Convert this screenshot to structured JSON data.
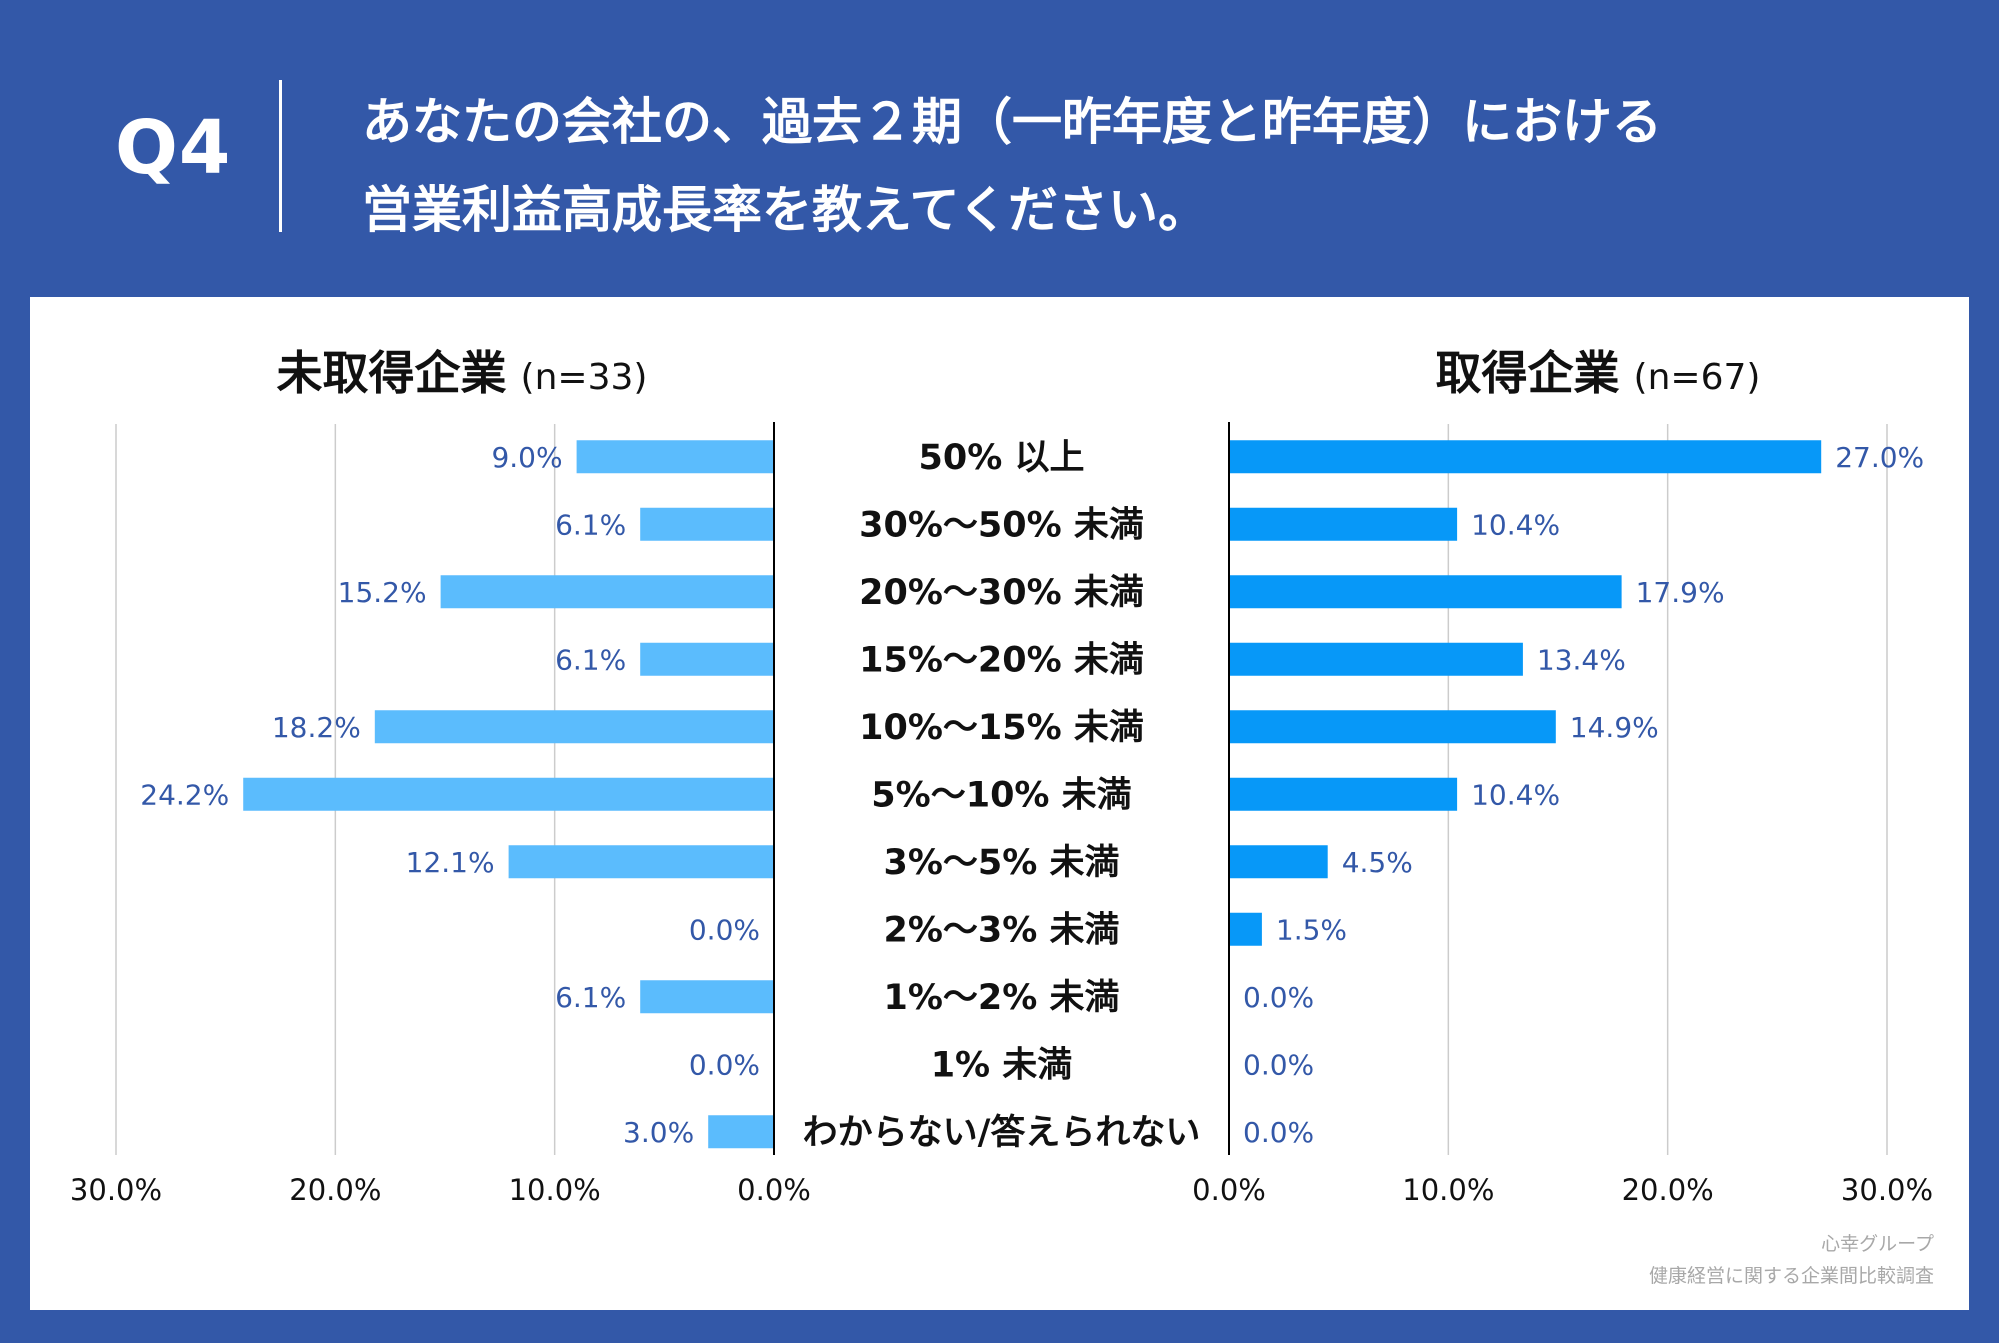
{
  "header": {
    "q_label": "Q4",
    "question_line1": "あなたの会社の、過去２期（一昨年度と昨年度）における",
    "question_line2": "営業利益高成長率を教えてください。"
  },
  "source": {
    "line1": "心幸グループ",
    "line2": "健康経営に関する企業間比較調査"
  },
  "colors": {
    "background": "#3358a8",
    "left_bar": "#5bbcfd",
    "right_bar": "#0798f8",
    "value_label": "#3358a8"
  },
  "chart_data": {
    "type": "bar",
    "orientation": "horizontal-butterfly",
    "categories": [
      "50% 以上",
      "30%～50% 未満",
      "20%～30% 未満",
      "15%～20% 未満",
      "10%～15% 未満",
      "5%～10% 未満",
      "3%～5% 未満",
      "2%～3% 未満",
      "1%～2% 未満",
      "1% 未満",
      "わからない/答えられない"
    ],
    "series": [
      {
        "name": "未取得企業",
        "n_label": "(n=33)",
        "side": "left",
        "values": [
          9.0,
          6.1,
          15.2,
          6.1,
          18.2,
          24.2,
          12.1,
          0.0,
          6.1,
          0.0,
          3.0
        ],
        "labels": [
          "9.0%",
          "6.1%",
          "15.2%",
          "6.1%",
          "18.2%",
          "24.2%",
          "12.1%",
          "0.0%",
          "6.1%",
          "0.0%",
          "3.0%"
        ]
      },
      {
        "name": "取得企業",
        "n_label": "(n=67)",
        "side": "right",
        "values": [
          27.0,
          10.4,
          17.9,
          13.4,
          14.9,
          10.4,
          4.5,
          1.5,
          0.0,
          0.0,
          0.0
        ],
        "labels": [
          "27.0%",
          "10.4%",
          "17.9%",
          "13.4%",
          "14.9%",
          "10.4%",
          "4.5%",
          "1.5%",
          "0.0%",
          "0.0%",
          "0.0%"
        ]
      }
    ],
    "xlim": [
      0,
      30
    ],
    "ticks_left": [
      "30.0%",
      "20.0%",
      "10.0%",
      "0.0%"
    ],
    "ticks_right": [
      "0.0%",
      "10.0%",
      "20.0%",
      "30.0%"
    ],
    "grid": true
  }
}
